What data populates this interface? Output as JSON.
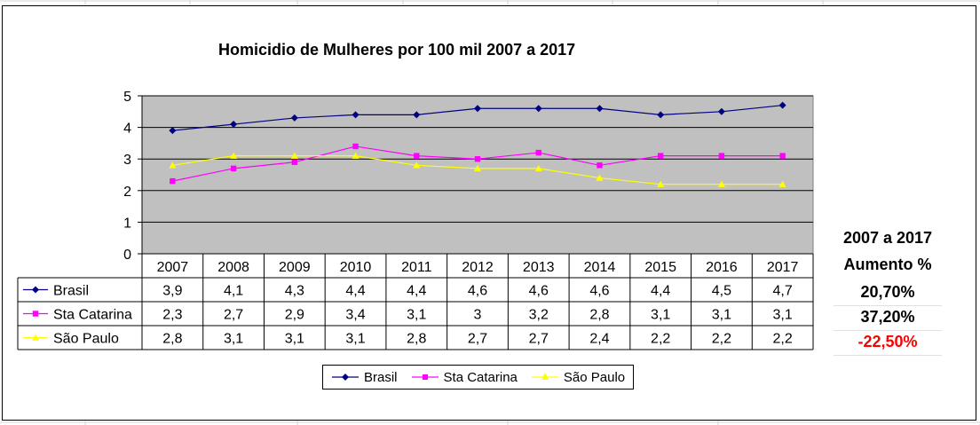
{
  "chart_data": {
    "type": "line",
    "title": "Homicidio de Mulheres por 100 mil 2007 a 2017",
    "categories": [
      "2007",
      "2008",
      "2009",
      "2010",
      "2011",
      "2012",
      "2013",
      "2014",
      "2015",
      "2016",
      "2017"
    ],
    "ylim": [
      0,
      5
    ],
    "yticks": [
      "0",
      "1",
      "2",
      "3",
      "4",
      "5"
    ],
    "grid": true,
    "plot_background": "#c0c0c0",
    "legend_position": "bottom",
    "series": [
      {
        "name": "Brasil",
        "color": "#000080",
        "marker": "diamond",
        "values": [
          3.9,
          4.1,
          4.3,
          4.4,
          4.4,
          4.6,
          4.6,
          4.6,
          4.4,
          4.5,
          4.7
        ],
        "labels": [
          "3,9",
          "4,1",
          "4,3",
          "4,4",
          "4,4",
          "4,6",
          "4,6",
          "4,6",
          "4,4",
          "4,5",
          "4,7"
        ]
      },
      {
        "name": "Sta Catarina",
        "color": "#ff00ff",
        "marker": "square",
        "values": [
          2.3,
          2.7,
          2.9,
          3.4,
          3.1,
          3.0,
          3.2,
          2.8,
          3.1,
          3.1,
          3.1
        ],
        "labels": [
          "2,3",
          "2,7",
          "2,9",
          "3,4",
          "3,1",
          "3",
          "3,2",
          "2,8",
          "3,1",
          "3,1",
          "3,1"
        ]
      },
      {
        "name": "São Paulo",
        "color": "#ffff00",
        "marker": "triangle",
        "values": [
          2.8,
          3.1,
          3.1,
          3.1,
          2.8,
          2.7,
          2.7,
          2.4,
          2.2,
          2.2,
          2.2
        ],
        "labels": [
          "2,8",
          "3,1",
          "3,1",
          "3,1",
          "2,8",
          "2,7",
          "2,7",
          "2,4",
          "2,2",
          "2,2",
          "2,2"
        ]
      }
    ]
  },
  "side_panel": {
    "header1": "2007 a 2017",
    "header2": "Aumento %",
    "values": [
      {
        "text": "20,70%",
        "color": "#000000"
      },
      {
        "text": "37,20%",
        "color": "#000000"
      },
      {
        "text": "-22,50%",
        "color": "#ff0000"
      }
    ]
  }
}
